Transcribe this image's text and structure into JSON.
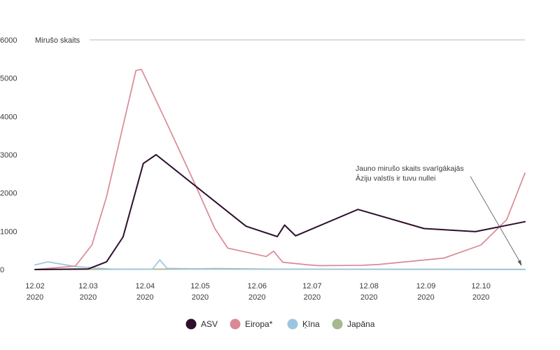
{
  "chart_data": {
    "type": "line",
    "ylabel": "Mirušo skaits",
    "ylim": [
      0,
      6000
    ],
    "yticks": [
      0,
      1000,
      2000,
      3000,
      4000,
      5000,
      6000
    ],
    "xlim": [
      "2020-02-01",
      "2020-10-25"
    ],
    "xticks": [
      {
        "date": "2020-02-01",
        "line1": "12.02",
        "line2": "2020"
      },
      {
        "date": "2020-03-01",
        "line1": "12.03",
        "line2": "2020"
      },
      {
        "date": "2020-04-01",
        "line1": "12.04",
        "line2": "2020"
      },
      {
        "date": "2020-05-01",
        "line1": "12.05",
        "line2": "2020"
      },
      {
        "date": "2020-06-01",
        "line1": "12.06",
        "line2": "2020"
      },
      {
        "date": "2020-07-01",
        "line1": "12.07",
        "line2": "2020"
      },
      {
        "date": "2020-08-01",
        "line1": "12.08",
        "line2": "2020"
      },
      {
        "date": "2020-09-01",
        "line1": "12.09",
        "line2": "2020"
      },
      {
        "date": "2020-10-01",
        "line1": "12.10",
        "line2": "2020"
      }
    ],
    "grid": false,
    "legend_position": "bottom",
    "series": [
      {
        "name": "ASV",
        "color": "#2e0f2c",
        "points": [
          [
            "2020-02-01",
            0
          ],
          [
            "2020-03-01",
            15
          ],
          [
            "2020-03-11",
            200
          ],
          [
            "2020-03-20",
            850
          ],
          [
            "2020-03-31",
            2770
          ],
          [
            "2020-04-07",
            3000
          ],
          [
            "2020-05-26",
            1130
          ],
          [
            "2020-06-12",
            860
          ],
          [
            "2020-06-16",
            1160
          ],
          [
            "2020-06-22",
            880
          ],
          [
            "2020-07-26",
            1570
          ],
          [
            "2020-08-31",
            1070
          ],
          [
            "2020-09-28",
            990
          ],
          [
            "2020-10-25",
            1250
          ]
        ]
      },
      {
        "name": "Eiropa*",
        "color": "#d98a95",
        "points": [
          [
            "2020-02-01",
            0
          ],
          [
            "2020-02-23",
            90
          ],
          [
            "2020-03-03",
            640
          ],
          [
            "2020-03-11",
            1900
          ],
          [
            "2020-03-27",
            5200
          ],
          [
            "2020-03-30",
            5230
          ],
          [
            "2020-04-14",
            3700
          ],
          [
            "2020-04-28",
            2250
          ],
          [
            "2020-05-09",
            1070
          ],
          [
            "2020-05-16",
            560
          ],
          [
            "2020-06-06",
            340
          ],
          [
            "2020-06-10",
            480
          ],
          [
            "2020-06-15",
            190
          ],
          [
            "2020-06-29",
            120
          ],
          [
            "2020-07-05",
            100
          ],
          [
            "2020-07-28",
            110
          ],
          [
            "2020-08-06",
            130
          ],
          [
            "2020-09-11",
            300
          ],
          [
            "2020-10-01",
            640
          ],
          [
            "2020-10-15",
            1300
          ],
          [
            "2020-10-25",
            2520
          ]
        ]
      },
      {
        "name": "Ķīna",
        "color": "#9cc6df",
        "points": [
          [
            "2020-02-01",
            120
          ],
          [
            "2020-02-08",
            200
          ],
          [
            "2020-02-23",
            80
          ],
          [
            "2020-03-04",
            40
          ],
          [
            "2020-03-15",
            10
          ],
          [
            "2020-04-05",
            10
          ],
          [
            "2020-04-09",
            250
          ],
          [
            "2020-04-13",
            30
          ],
          [
            "2020-05-15",
            10
          ],
          [
            "2020-10-25",
            0
          ]
        ]
      },
      {
        "name": "Japāna",
        "color": "#a6b88f",
        "points": [
          [
            "2020-02-01",
            0
          ],
          [
            "2020-04-10",
            10
          ],
          [
            "2020-05-10",
            25
          ],
          [
            "2020-06-10",
            10
          ],
          [
            "2020-10-25",
            5
          ]
        ]
      }
    ],
    "annotations": [
      {
        "lines": [
          "Jauno mirušo skaits svarīgākajās",
          "Āziju valstīs ir tuvu nullei"
        ]
      }
    ]
  }
}
